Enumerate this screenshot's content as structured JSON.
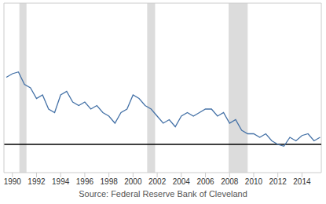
{
  "chart_data": {
    "type": "line",
    "source": "Source: Federal Reserve Bank of Cleveland",
    "x": [
      1989.5,
      1990,
      1990.5,
      1991,
      1991.5,
      1992,
      1992.5,
      1993,
      1993.5,
      1994,
      1994.5,
      1995,
      1995.5,
      1996,
      1996.5,
      1997,
      1997.5,
      1998,
      1998.5,
      1999,
      1999.5,
      2000,
      2000.5,
      2001,
      2001.5,
      2002,
      2002.5,
      2003,
      2003.5,
      2004,
      2004.5,
      2005,
      2005.5,
      2006,
      2006.5,
      2007,
      2007.5,
      2008,
      2008.5,
      2009,
      2009.5,
      2010,
      2010.5,
      2011,
      2011.5,
      2012,
      2012.5,
      2013,
      2013.5,
      2014,
      2014.5,
      2015,
      2015.5
    ],
    "values": [
      3.9,
      4.0,
      4.05,
      3.7,
      3.6,
      3.3,
      3.4,
      3.0,
      2.9,
      3.4,
      3.5,
      3.2,
      3.1,
      3.2,
      3.0,
      3.1,
      2.9,
      2.8,
      2.6,
      2.9,
      3.0,
      3.4,
      3.3,
      3.1,
      3.0,
      2.8,
      2.6,
      2.7,
      2.5,
      2.8,
      2.9,
      2.8,
      2.9,
      3.0,
      3.0,
      2.8,
      2.9,
      2.6,
      2.7,
      2.4,
      2.3,
      2.3,
      2.2,
      2.3,
      2.1,
      2.0,
      1.95,
      2.2,
      2.1,
      2.25,
      2.3,
      2.1,
      2.2
    ],
    "color": "#4572a7",
    "xlim": [
      1989.3,
      2015.6
    ],
    "xticks": [
      1990,
      1992,
      1994,
      1996,
      1998,
      2000,
      2002,
      2004,
      2006,
      2008,
      2010,
      2012,
      2014
    ],
    "ylim": [
      1.2,
      6
    ],
    "tick_labels": "x",
    "grid": false,
    "reference_line": 2,
    "recessions": [
      [
        1990.58,
        1991.17
      ],
      [
        2001.17,
        2001.83
      ],
      [
        2007.92,
        2009.5
      ]
    ]
  }
}
